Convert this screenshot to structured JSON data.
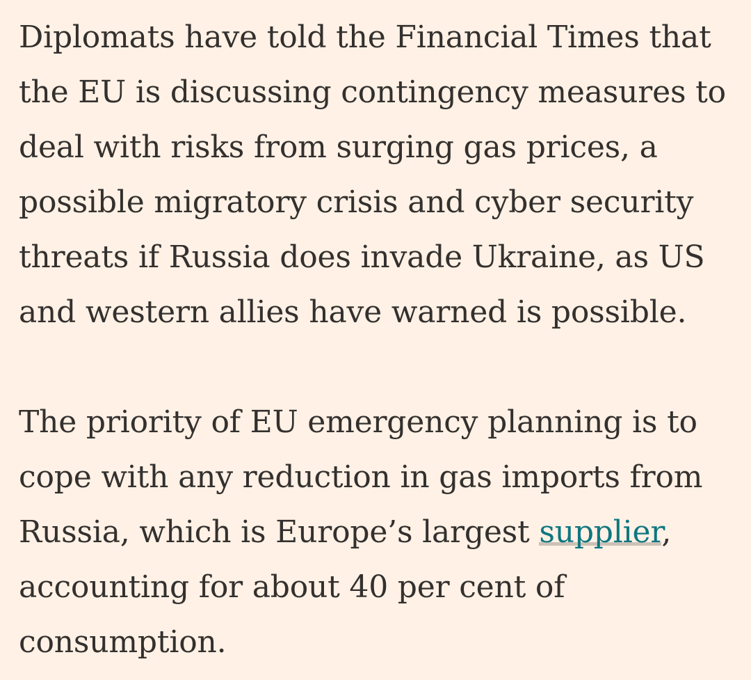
{
  "article": {
    "paragraph_1": "Diplomats have told the Financial Times that the EU is discussing contingency measures to deal with risks from surging gas prices, a possible migratory crisis and cyber security threats if Russia does invade Ukraine, as US and western allies have warned is possible.",
    "paragraph_2": {
      "before_link": "The priority of EU emergency planning is to cope with any reduction in gas imports from Russia, which is Europe’s largest ",
      "link_text": "supplier",
      "after_link": ", accounting for about 40 per cent of consumption."
    }
  },
  "colors": {
    "background": "#fff1e5",
    "text": "#33302e",
    "link": "#0d7680",
    "link_underline": "#ccc1b7"
  }
}
